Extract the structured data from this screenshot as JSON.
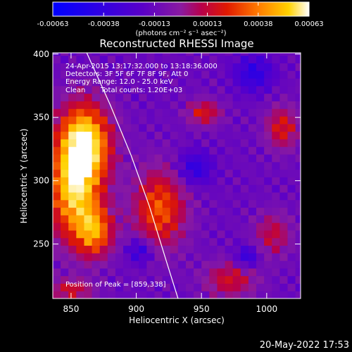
{
  "chart_data": {
    "type": "heatmap",
    "title": "Reconstructed RHESSI Image",
    "xlabel": "Heliocentric X (arcsec)",
    "ylabel": "Heliocentric Y (arcsec)",
    "xlim": [
      836,
      1026
    ],
    "ylim": [
      207,
      401
    ],
    "xticks": [
      850,
      900,
      950,
      1000
    ],
    "yticks": [
      250,
      300,
      350,
      400
    ],
    "colorbar": {
      "label": "(photons cm⁻² s⁻¹ asec⁻²)",
      "range": [
        -0.00063,
        0.00063
      ],
      "ticks": [
        "-0.00063",
        "-0.00038",
        "-0.00013",
        "0.00013",
        "0.00038",
        "0.00063"
      ],
      "colors": [
        "#0000ff",
        "#5a00c8",
        "#8a1aa0",
        "#b8004a",
        "#e01a00",
        "#ff7a00",
        "#ffd200",
        "#ffffff"
      ]
    },
    "annotations": {
      "time_range": "24-Apr-2015 13:17:32.000 to 13:18:36.000",
      "detectors": "Detectors: 3F 5F 6F 7F 8F 9F, Att 0",
      "energy_range": "Energy Range: 12.0 - 25.0 keV",
      "method": "Clean",
      "total_counts": "Total counts: 1.20E+03",
      "peak": "Position of Peak = [859,338]"
    },
    "peak": [
      859,
      338
    ],
    "limb_curve": [
      [
        862,
        401
      ],
      [
        880,
        360
      ],
      [
        896,
        320
      ],
      [
        910,
        280
      ],
      [
        922,
        240
      ],
      [
        932,
        207
      ]
    ],
    "sources": [
      {
        "x": 860,
        "y": 330,
        "sx": 14,
        "sy": 22,
        "amp": 1.0
      },
      {
        "x": 852,
        "y": 290,
        "sx": 14,
        "sy": 26,
        "amp": 0.8
      },
      {
        "x": 868,
        "y": 260,
        "sx": 10,
        "sy": 14,
        "amp": 0.65
      },
      {
        "x": 918,
        "y": 278,
        "sx": 14,
        "sy": 22,
        "amp": 0.6
      },
      {
        "x": 952,
        "y": 354,
        "sx": 9,
        "sy": 7,
        "amp": 0.45
      },
      {
        "x": 1012,
        "y": 342,
        "sx": 9,
        "sy": 12,
        "amp": 0.45
      },
      {
        "x": 1005,
        "y": 258,
        "sx": 10,
        "sy": 12,
        "amp": 0.35
      },
      {
        "x": 972,
        "y": 222,
        "sx": 14,
        "sy": 10,
        "amp": 0.4
      },
      {
        "x": 850,
        "y": 214,
        "sx": 12,
        "sy": 6,
        "amp": 0.4
      }
    ],
    "cold_spots": [
      {
        "x": 985,
        "y": 240,
        "s": 6
      },
      {
        "x": 903,
        "y": 245,
        "s": 7
      },
      {
        "x": 945,
        "y": 310,
        "s": 9
      },
      {
        "x": 990,
        "y": 385,
        "s": 10
      }
    ]
  },
  "footer": {
    "date": "20-May-2022 17:53"
  }
}
